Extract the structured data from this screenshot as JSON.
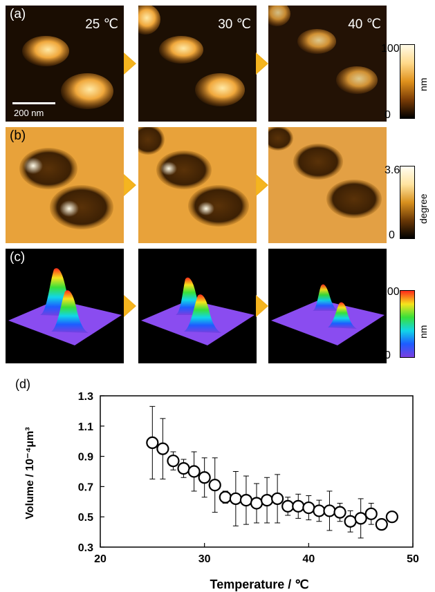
{
  "panels": {
    "a": {
      "letter": "(a)"
    },
    "b": {
      "letter": "(b)"
    },
    "c": {
      "letter": "(c)"
    },
    "d": {
      "letter": "(d)"
    }
  },
  "temperatures": [
    "25 ℃",
    "30 ℃",
    "40 ℃"
  ],
  "scalebar_label": "200 nm",
  "colorbars": {
    "height": {
      "max": "100",
      "min": "0",
      "unit": "nm"
    },
    "phase": {
      "max": "3.6",
      "min": "0",
      "unit": "degree"
    },
    "height3d": {
      "max": "100",
      "min": "0",
      "unit": "nm"
    }
  },
  "colors": {
    "afm_dark": "#1a0d02",
    "afm_mid": "#b5620c",
    "afm_bright": "#ffe9a6",
    "arrow": "#f5b51f",
    "surface_3d": "#7a3fe0"
  },
  "chart_data": {
    "type": "scatter",
    "xlabel": "Temperature / ℃",
    "ylabel": "Volume / 10⁻⁴μm³",
    "xlim": [
      20,
      50
    ],
    "ylim": [
      0.3,
      1.3
    ],
    "xticks": [
      "20",
      "30",
      "40",
      "50"
    ],
    "yticks": [
      "0.3",
      "0.5",
      "0.7",
      "0.9",
      "1.1",
      "1.3"
    ],
    "x": [
      25,
      26,
      27,
      28,
      29,
      30,
      31,
      32,
      33,
      34,
      35,
      36,
      37,
      38,
      39,
      40,
      41,
      42,
      43,
      44,
      45,
      46,
      47,
      48
    ],
    "y": [
      0.99,
      0.95,
      0.87,
      0.82,
      0.8,
      0.76,
      0.71,
      0.63,
      0.62,
      0.61,
      0.59,
      0.61,
      0.62,
      0.57,
      0.57,
      0.56,
      0.54,
      0.54,
      0.53,
      0.47,
      0.49,
      0.52,
      0.45,
      0.5
    ],
    "err": [
      0.24,
      0.2,
      0.06,
      0.06,
      0.13,
      0.13,
      0.18,
      0.04,
      0.18,
      0.16,
      0.13,
      0.15,
      0.16,
      0.06,
      0.08,
      0.08,
      0.07,
      0.13,
      0.06,
      0.07,
      0.13,
      0.07,
      0.03,
      0.02
    ],
    "grid": false,
    "legend": "none"
  }
}
